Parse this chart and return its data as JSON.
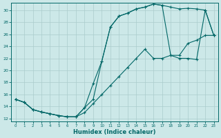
{
  "xlabel": "Humidex (Indice chaleur)",
  "background_color": "#cce8e8",
  "grid_color": "#aacccc",
  "line_color": "#006666",
  "xlim": [
    -0.5,
    23.5
  ],
  "ylim": [
    11.5,
    31.2
  ],
  "xticks": [
    0,
    1,
    2,
    3,
    4,
    5,
    6,
    7,
    8,
    9,
    10,
    11,
    12,
    13,
    14,
    15,
    16,
    17,
    18,
    19,
    20,
    21,
    22,
    23
  ],
  "yticks": [
    12,
    14,
    16,
    18,
    20,
    22,
    24,
    26,
    28,
    30
  ],
  "curve_top_x": [
    0,
    1,
    2,
    3,
    4,
    5,
    6,
    7,
    8,
    9,
    10,
    11,
    12,
    13,
    14,
    15,
    16,
    17,
    18,
    19,
    20,
    21,
    22,
    23
  ],
  "curve_top_y": [
    15.2,
    14.7,
    13.5,
    13.1,
    12.8,
    12.5,
    12.3,
    12.3,
    13.8,
    17.8,
    21.5,
    27.2,
    29.0,
    29.5,
    30.2,
    30.5,
    31.0,
    30.8,
    30.5,
    30.2,
    30.3,
    30.2,
    30.0,
    25.8
  ],
  "curve_mid_x": [
    0,
    1,
    2,
    3,
    4,
    5,
    6,
    7,
    8,
    9,
    10,
    11,
    12,
    13,
    14,
    15,
    16,
    17,
    18,
    19,
    20,
    21,
    22,
    23
  ],
  "curve_mid_y": [
    15.2,
    14.7,
    13.5,
    13.1,
    12.8,
    12.5,
    12.3,
    12.3,
    13.8,
    15.2,
    21.5,
    27.2,
    29.0,
    29.5,
    30.2,
    30.5,
    31.0,
    30.8,
    22.5,
    22.0,
    22.0,
    21.8,
    30.0,
    25.8
  ],
  "curve_bot_x": [
    0,
    1,
    2,
    3,
    4,
    5,
    6,
    7,
    8,
    9,
    10,
    11,
    12,
    13,
    14,
    15,
    16,
    17,
    18,
    19,
    20,
    21,
    22,
    23
  ],
  "curve_bot_y": [
    15.2,
    14.7,
    13.5,
    13.1,
    12.8,
    12.5,
    12.3,
    12.3,
    13.0,
    14.5,
    16.0,
    17.5,
    19.0,
    20.5,
    22.0,
    23.5,
    22.0,
    22.0,
    22.5,
    22.5,
    24.5,
    25.0,
    25.8,
    25.8
  ]
}
